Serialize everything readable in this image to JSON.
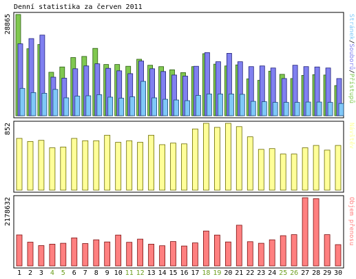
{
  "chart_data": {
    "title": "Denní statistika za červen 2011",
    "categories": [
      "1",
      "2",
      "3",
      "4",
      "5",
      "6",
      "7",
      "8",
      "9",
      "10",
      "11",
      "12",
      "13",
      "14",
      "15",
      "16",
      "17",
      "18",
      "19",
      "20",
      "21",
      "22",
      "23",
      "24",
      "25",
      "26",
      "27",
      "28",
      "29",
      "30"
    ],
    "weekend_days": [
      "4",
      "5",
      "11",
      "12",
      "18",
      "19",
      "25",
      "26"
    ],
    "weekend_color": "#6c9e1e",
    "weekday_color": "#000000",
    "panels": [
      {
        "type": "bar",
        "ymax": 28865,
        "ymax_label": "28865",
        "series": [
          {
            "name": "Přístupů",
            "color": "#80c850",
            "border": "#2a5a10",
            "values": [
              28865,
              19100,
              20300,
              12400,
              13900,
              16600,
              16900,
              19200,
              14600,
              14600,
              14100,
              16100,
              14400,
              14000,
              13100,
              12300,
              14000,
              17700,
              14700,
              14200,
              14500,
              10500,
              10100,
              12700,
              11800,
              10600,
              11500,
              11700,
              11600,
              8600
            ]
          },
          {
            "name": "Souborů",
            "color": "#8080f0",
            "border": "#20207a",
            "values": [
              20500,
              22000,
              23000,
              11000,
              10700,
              13400,
              14200,
              14800,
              13500,
              12800,
              12000,
              15600,
              13400,
              12600,
              11600,
              11300,
              14100,
              18000,
              15400,
              17800,
              15400,
              14000,
              14200,
              13600,
              10600,
              14400,
              14000,
              13900,
              13600,
              10600
            ]
          },
          {
            "name": "Stránek",
            "color": "#80c8f8",
            "border": "#1a4a7a",
            "values": [
              7800,
              6600,
              6400,
              7500,
              5100,
              5600,
              5700,
              6000,
              5300,
              5000,
              5400,
              9800,
              5100,
              4700,
              4500,
              4300,
              5800,
              6200,
              6200,
              6200,
              6100,
              4100,
              4000,
              3800,
              3800,
              3800,
              3900,
              3900,
              3800,
              3500
            ]
          }
        ]
      },
      {
        "type": "bar",
        "ymax": 852,
        "ymax_label": "852",
        "series": [
          {
            "name": "Návštěv",
            "color": "#ffff99",
            "border": "#6a6a00",
            "values": [
              660,
              620,
              635,
              540,
              550,
              660,
              630,
              630,
              700,
              610,
              630,
              610,
              700,
              580,
              600,
              590,
              780,
              852,
              800,
              852,
              810,
              680,
              520,
              530,
              460,
              460,
              540,
              570,
              510,
              570
            ]
          }
        ]
      },
      {
        "type": "bar",
        "ymax": 2178632,
        "ymax_label": "2178632",
        "series": [
          {
            "name": "Objem přenosu",
            "color": "#ff8080",
            "border": "#7a1010",
            "values": [
              990000,
              760000,
              650000,
              695000,
              725000,
              895000,
              715000,
              835000,
              765000,
              985000,
              755000,
              855000,
              695000,
              645000,
              780000,
              635000,
              735000,
              1115000,
              985000,
              765000,
              1300000,
              775000,
              725000,
              835000,
              965000,
              1000000,
              2178632,
              2150000,
              1000000,
              680000
            ]
          }
        ]
      }
    ]
  }
}
